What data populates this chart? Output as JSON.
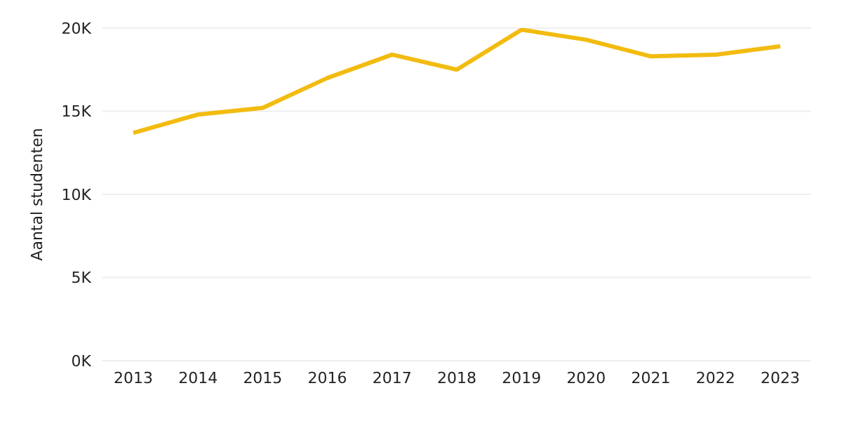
{
  "chart_data": {
    "type": "line",
    "ylabel": "Aantal studenten",
    "categories": [
      "2013",
      "2014",
      "2015",
      "2016",
      "2017",
      "2018",
      "2019",
      "2020",
      "2021",
      "2022",
      "2023"
    ],
    "series": [
      {
        "color": "#f2bb0f",
        "values": [
          13700,
          14800,
          15200,
          17000,
          18400,
          17500,
          19900,
          19300,
          18300,
          18400,
          18900
        ]
      }
    ],
    "ylim": [
      0,
      20000
    ],
    "yticks": [
      {
        "value": 0,
        "label": "0K"
      },
      {
        "value": 5000,
        "label": "5K"
      },
      {
        "value": 10000,
        "label": "10K"
      },
      {
        "value": 15000,
        "label": "15K"
      },
      {
        "value": 20000,
        "label": "20K"
      }
    ],
    "grid": "y",
    "marker": "none",
    "line_style": "solid",
    "legend": false
  }
}
